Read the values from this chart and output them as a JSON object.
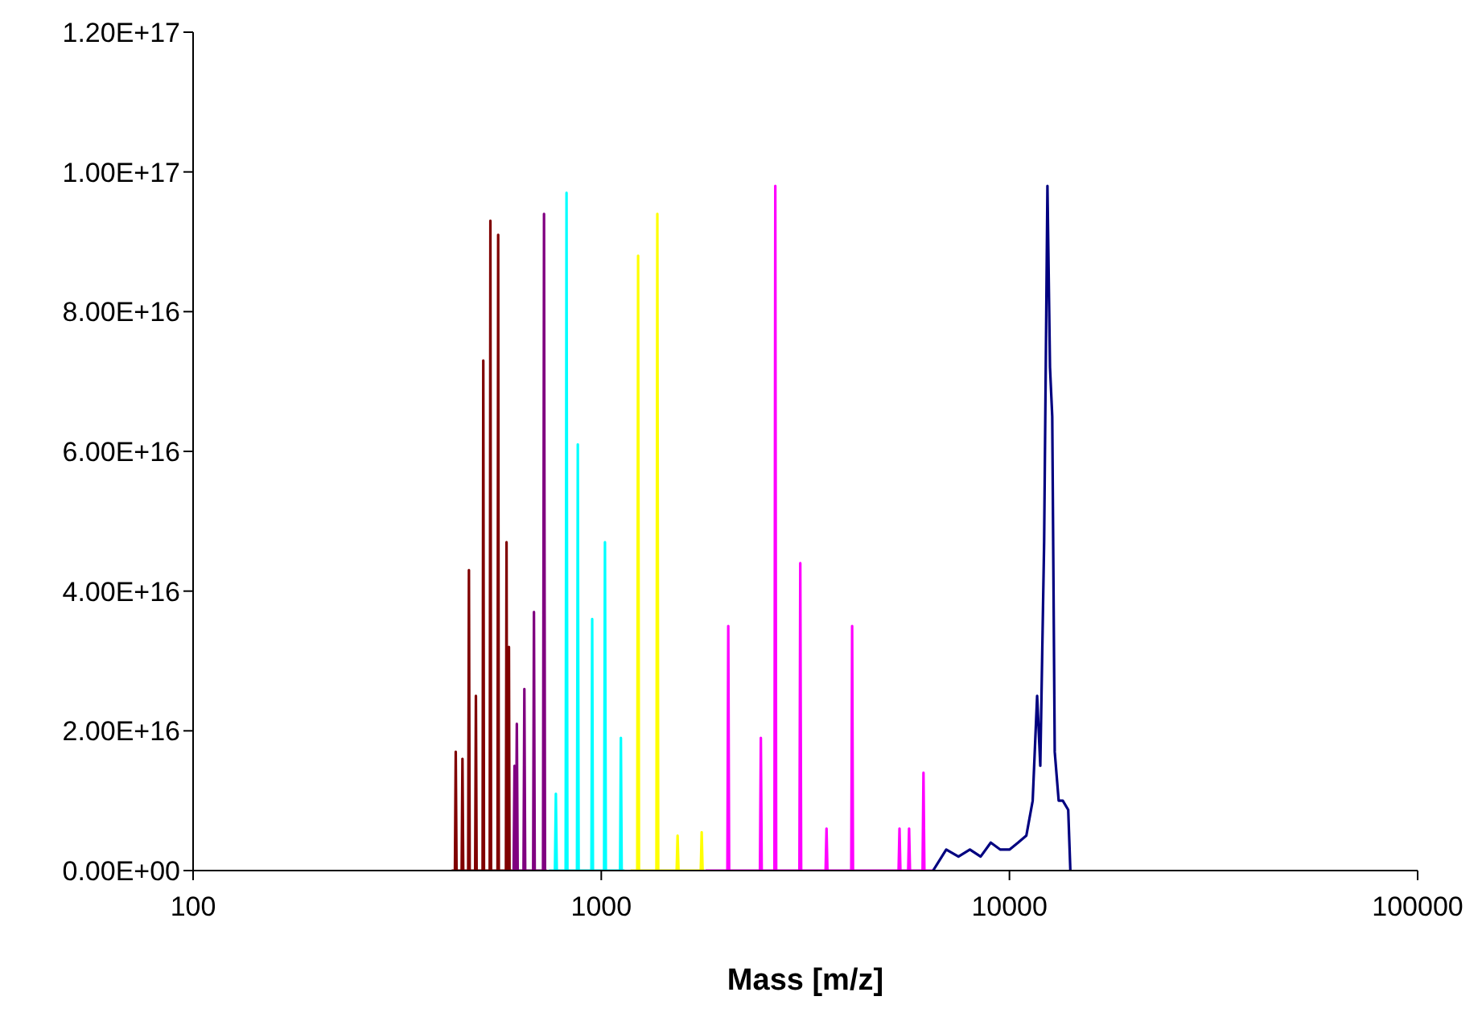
{
  "chart_data": {
    "type": "line",
    "xlabel": "Mass [m/z]",
    "log": "x",
    "xlim": [
      100,
      100000
    ],
    "xticks": [
      100,
      1000,
      10000,
      100000
    ],
    "ylim": [
      0,
      1.2e+17
    ],
    "yticks": [
      {
        "value": 0,
        "label": "0.00E+00"
      },
      {
        "value": 2e+16,
        "label": "2.00E+16"
      },
      {
        "value": 4e+16,
        "label": "4.00E+16"
      },
      {
        "value": 6e+16,
        "label": "6.00E+16"
      },
      {
        "value": 8e+16,
        "label": "8.00E+16"
      },
      {
        "value": 1e+17,
        "label": "1.00E+17"
      },
      {
        "value": 1.2e+17,
        "label": "1.20E+17"
      }
    ],
    "grid": false,
    "legend": false,
    "marker": "none",
    "series": [
      {
        "color": "#800000",
        "x": [
          430,
          438,
          440,
          442,
          455,
          457,
          459,
          472,
          474,
          476,
          491,
          493,
          495,
          512,
          514,
          516,
          533,
          535,
          537,
          557,
          559,
          561,
          584,
          586,
          588,
          592,
          594,
          596,
          605
        ],
        "values": [
          0,
          0,
          1.7e+16,
          0,
          0,
          1.6e+16,
          0,
          0,
          4.3e+16,
          0,
          0,
          2.5e+16,
          0,
          0,
          7.3e+16,
          0,
          0,
          9.3e+16,
          0,
          0,
          9.1e+16,
          0,
          0,
          4.7e+16,
          0,
          0,
          3.2e+16,
          0,
          0
        ]
      },
      {
        "color": "#800080",
        "x": [
          605,
          610,
          613,
          616,
          618,
          621,
          624,
          645,
          648,
          651,
          681,
          684,
          687,
          720,
          724,
          728,
          735
        ],
        "values": [
          0,
          0,
          1.5e+16,
          0,
          0,
          2.1e+16,
          0,
          0,
          2.6e+16,
          0,
          0,
          3.7e+16,
          0,
          0,
          9.4e+16,
          0,
          0
        ]
      },
      {
        "color": "#00ffff",
        "x": [
          745,
          770,
          774,
          778,
          818,
          822,
          826,
          872,
          876,
          880,
          946,
          950,
          954,
          1016,
          1021,
          1026,
          1112,
          1117,
          1122,
          1140
        ],
        "values": [
          0,
          0,
          1.1e+16,
          0,
          0,
          9.7e+16,
          0,
          0,
          6.1e+16,
          0,
          0,
          3.6e+16,
          0,
          0,
          4.7e+16,
          0,
          0,
          1.9e+16,
          0,
          0
        ]
      },
      {
        "color": "#ffff00",
        "x": [
          1180,
          1225,
          1231,
          1237,
          1365,
          1372,
          1379,
          1530,
          1538,
          1546,
          1753,
          1762,
          1771,
          1790
        ],
        "values": [
          0,
          0,
          8.8e+16,
          0,
          0,
          9.4e+16,
          0,
          0,
          5000000000000000.0,
          0,
          0,
          5500000000000000.0,
          0,
          0
        ]
      },
      {
        "color": "#ff00ff",
        "x": [
          1800,
          2037,
          2047,
          2057,
          2448,
          2460,
          2472,
          2656,
          2669,
          2682,
          3058,
          3073,
          3088,
          3545,
          3563,
          3581,
          4097,
          4117,
          4137,
          5351,
          5378,
          5405,
          5649,
          5677,
          5705,
          6126,
          6157,
          6188,
          6500
        ],
        "values": [
          0,
          0,
          3.5e+16,
          0,
          0,
          1.9e+16,
          0,
          0,
          9.8e+16,
          0,
          0,
          4.4e+16,
          0,
          0,
          6000000000000000.0,
          0,
          0,
          3.5e+16,
          0,
          0,
          6000000000000000.0,
          0,
          0,
          6000000000000000.0,
          0,
          0,
          1.4e+16,
          0,
          0
        ]
      },
      {
        "color": "#000080",
        "x": [
          6500,
          7000,
          7500,
          8000,
          8500,
          9000,
          9500,
          10000,
          10500,
          11000,
          11400,
          11690,
          11900,
          12160,
          12390,
          12570,
          12730,
          12910,
          13200,
          13510,
          13930,
          14100
        ],
        "values": [
          0,
          3000000000000000.0,
          2000000000000000.0,
          3000000000000000.0,
          2000000000000000.0,
          4000000000000000.0,
          3000000000000000.0,
          3000000000000000.0,
          4000000000000000.0,
          5000000000000000.0,
          1e+16,
          2.5e+16,
          1.5e+16,
          4.7e+16,
          9.8e+16,
          7.2e+16,
          6.5e+16,
          1.7e+16,
          1e+16,
          1e+16,
          8700000000000000.0,
          0
        ]
      }
    ]
  }
}
